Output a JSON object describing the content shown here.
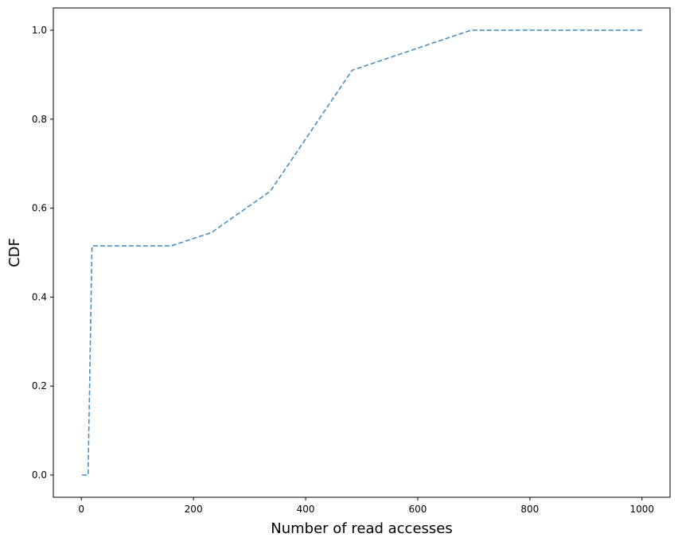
{
  "chart_data": {
    "type": "line",
    "title": "",
    "xlabel": "Number of read accesses",
    "ylabel": "CDF",
    "xlim": [
      -50,
      1050
    ],
    "ylim": [
      -0.05,
      1.05
    ],
    "xticks": [
      0,
      200,
      400,
      600,
      800,
      1000
    ],
    "yticks": [
      0.0,
      0.2,
      0.4,
      0.6,
      0.8,
      1.0
    ],
    "xtick_labels": [
      "0",
      "200",
      "400",
      "600",
      "800",
      "1000"
    ],
    "ytick_labels": [
      "0.0",
      "0.2",
      "0.4",
      "0.6",
      "0.8",
      "1.0"
    ],
    "grid": false,
    "series": [
      {
        "color": "#4a90c4",
        "line_style": "dashed",
        "x": [
          1,
          12,
          12,
          19,
          19,
          160,
          232,
          337,
          483,
          695,
          1000
        ],
        "y": [
          0.0,
          0.0,
          0.0,
          0.515,
          0.515,
          0.515,
          0.545,
          0.638,
          0.91,
          1.0,
          1.0
        ]
      }
    ]
  }
}
